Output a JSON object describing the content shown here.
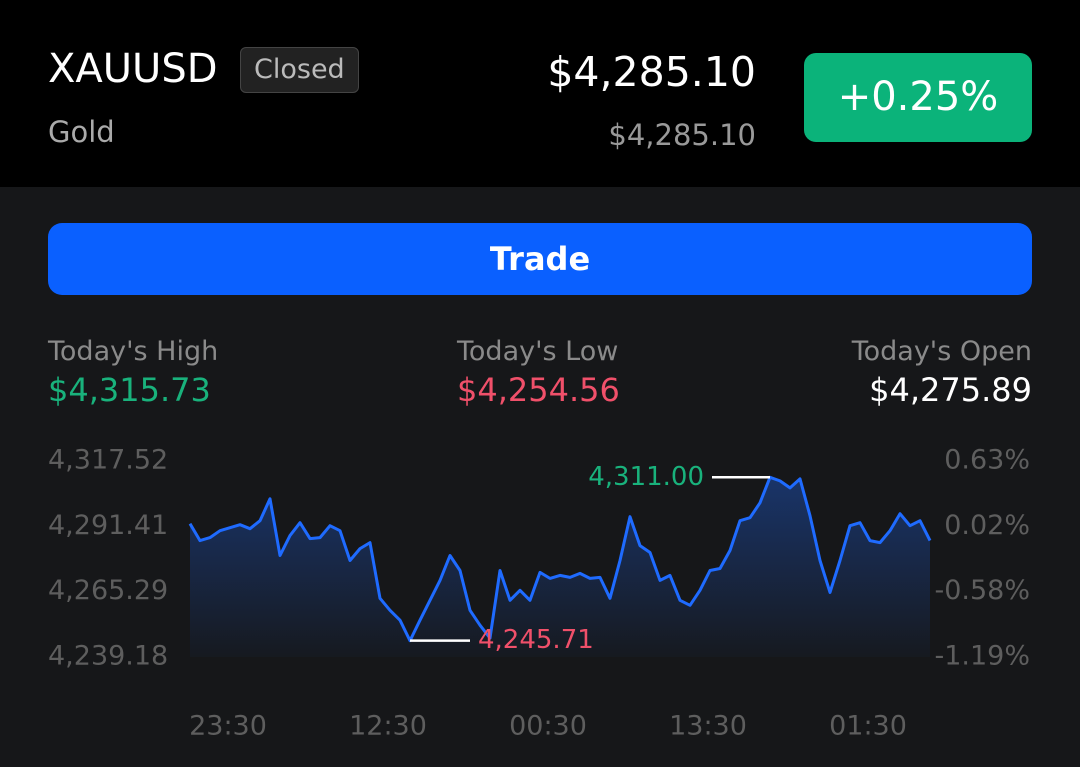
{
  "header": {
    "symbol": "XAUUSD",
    "status": "Closed",
    "name": "Gold",
    "price": "$4,285.10",
    "sub_price": "$4,285.10",
    "change": "+0.25%"
  },
  "button": "Trade",
  "stats": [
    {
      "label": "Today's High",
      "value": "$4,315.73"
    },
    {
      "label": "Today's Low",
      "value": "$4,254.56"
    },
    {
      "label": "Today's Open",
      "value": "$4,275.89"
    }
  ],
  "chart_data": {
    "type": "line",
    "color": "#1f6bff",
    "values": [
      4292.46,
      4285.7,
      4286.9,
      4289.68,
      4290.87,
      4292.07,
      4290.48,
      4293.66,
      4302.41,
      4279.74,
      4287.69,
      4292.86,
      4286.5,
      4286.9,
      4291.67,
      4289.68,
      4277.75,
      4282.52,
      4284.91,
      4262.64,
      4257.86,
      4253.89,
      4245.71,
      4253.89,
      4261.84,
      4269.8,
      4279.74,
      4273.77,
      4257.86,
      4251.9,
      4246.73,
      4273.77,
      4261.84,
      4265.82,
      4261.84,
      4272.98,
      4270.59,
      4271.78,
      4270.99,
      4272.58,
      4270.59,
      4270.99,
      4262.64,
      4277.75,
      4295.25,
      4283.72,
      4280.93,
      4269.8,
      4271.78,
      4261.84,
      4259.85,
      4265.82,
      4273.77,
      4274.57,
      4281.73,
      4293.66,
      4294.85,
      4300.82,
      4311.0,
      4309.57,
      4306.78,
      4310.36,
      4295.65,
      4277.75,
      4265.02,
      4277.75,
      4291.67,
      4292.86,
      4285.7,
      4284.91,
      4289.68,
      4296.44,
      4291.67,
      4293.66,
      4285.7
    ],
    "value_labels": [
      null,
      null,
      null,
      null,
      null,
      null,
      null,
      null,
      null,
      null,
      null,
      null,
      null,
      null,
      null,
      null,
      null,
      null,
      null,
      null,
      null,
      null,
      "4,245.71",
      null,
      null,
      null,
      null,
      null,
      null,
      null,
      null,
      null,
      null,
      null,
      null,
      null,
      null,
      null,
      null,
      null,
      null,
      null,
      null,
      null,
      null,
      null,
      null,
      null,
      null,
      null,
      null,
      null,
      null,
      null,
      null,
      null,
      null,
      null,
      "4,311.00",
      null,
      null,
      null,
      null,
      null,
      null,
      null,
      null,
      null,
      null,
      null,
      null,
      null,
      null,
      null,
      null
    ],
    "xlim": [
      0,
      74
    ],
    "xticks": [
      {
        "value": 3.8,
        "label": "23:30"
      },
      {
        "value": 19.8,
        "label": "12:30"
      },
      {
        "value": 35.8,
        "label": "00:30"
      },
      {
        "value": 51.8,
        "label": "13:30"
      },
      {
        "value": 67.8,
        "label": "01:30"
      }
    ],
    "ylim": [
      4239.18,
      4317.52
    ],
    "yticks": [
      {
        "value": 4317.52,
        "label": "4,317.52"
      },
      {
        "value": 4291.41,
        "label": "4,291.41"
      },
      {
        "value": 4265.29,
        "label": "4,265.29"
      },
      {
        "value": 4239.18,
        "label": "4,239.18"
      }
    ],
    "y2lim": [
      -1.19,
      0.63
    ],
    "y2ticks": [
      {
        "value": 0.63,
        "label": "0.63%"
      },
      {
        "value": 0.02,
        "label": "0.02%"
      },
      {
        "value": -0.58,
        "label": "-0.58%"
      },
      {
        "value": -1.19,
        "label": "-1.19%"
      }
    ]
  }
}
